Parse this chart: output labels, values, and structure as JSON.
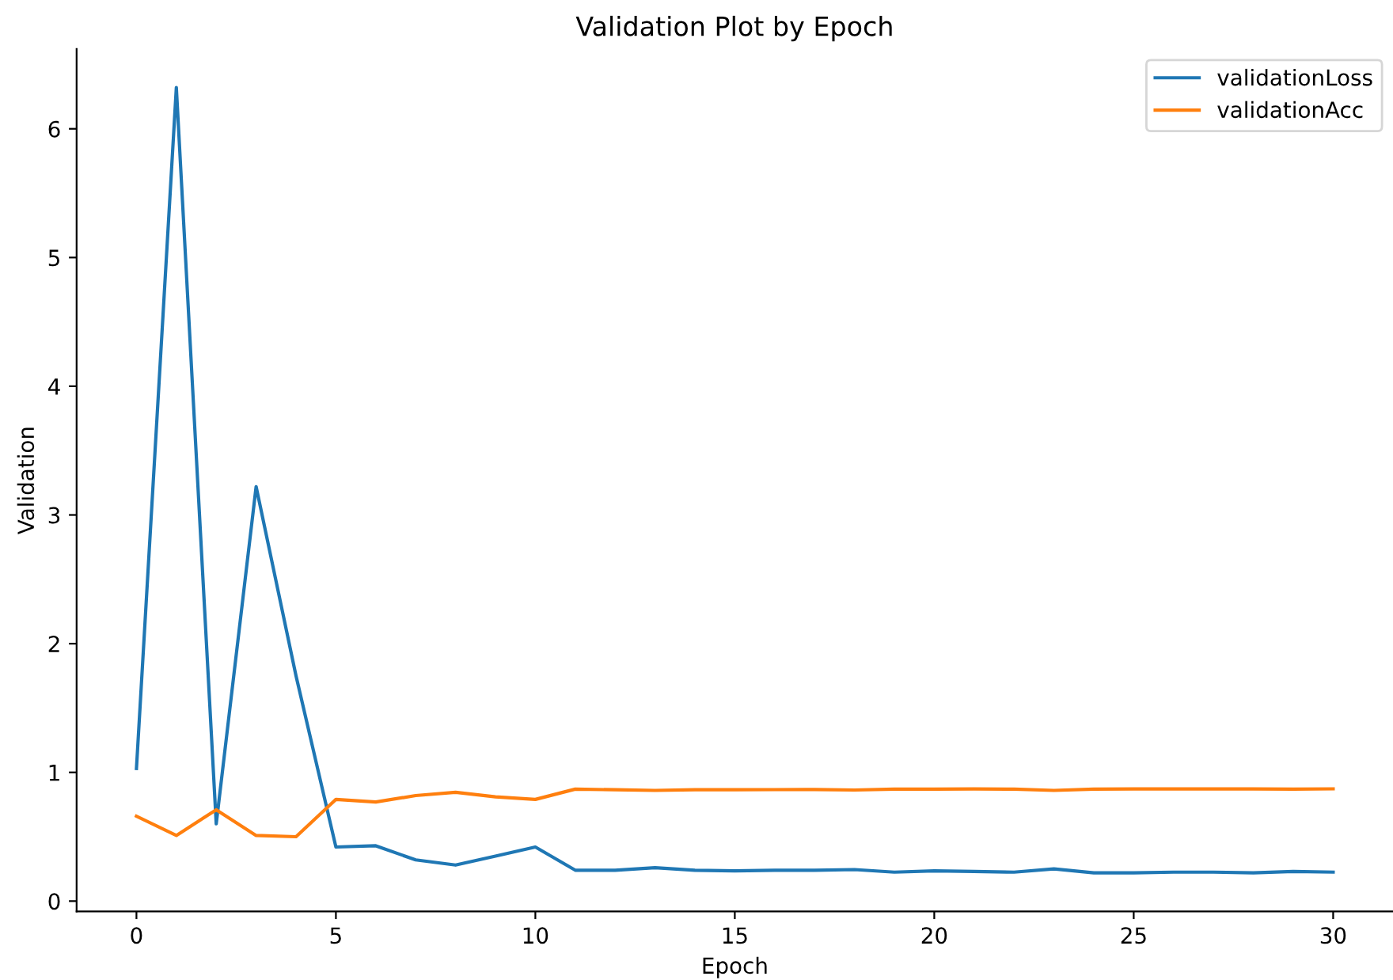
{
  "chart_data": {
    "type": "line",
    "title": "Validation Plot by Epoch",
    "xlabel": "Epoch",
    "ylabel": "Validation",
    "x": [
      0,
      1,
      2,
      3,
      4,
      5,
      6,
      7,
      8,
      9,
      10,
      11,
      12,
      13,
      14,
      15,
      16,
      17,
      18,
      19,
      20,
      21,
      22,
      23,
      24,
      25,
      26,
      27,
      28,
      29,
      30
    ],
    "series": [
      {
        "name": "validationLoss",
        "color": "#1f77b4",
        "values": [
          1.03,
          6.32,
          0.6,
          3.22,
          1.75,
          0.42,
          0.43,
          0.32,
          0.28,
          0.35,
          0.42,
          0.24,
          0.24,
          0.26,
          0.24,
          0.235,
          0.24,
          0.24,
          0.245,
          0.225,
          0.235,
          0.23,
          0.225,
          0.25,
          0.22,
          0.22,
          0.225,
          0.225,
          0.22,
          0.23,
          0.225
        ]
      },
      {
        "name": "validationAcc",
        "color": "#ff7f0e",
        "values": [
          0.66,
          0.51,
          0.71,
          0.51,
          0.5,
          0.79,
          0.77,
          0.82,
          0.845,
          0.81,
          0.79,
          0.87,
          0.865,
          0.86,
          0.865,
          0.865,
          0.866,
          0.867,
          0.863,
          0.87,
          0.87,
          0.872,
          0.87,
          0.86,
          0.87,
          0.872,
          0.872,
          0.872,
          0.872,
          0.87,
          0.872
        ]
      }
    ],
    "xlim": [
      -1.5,
      31.5
    ],
    "ylim": [
      -0.08,
      6.62
    ],
    "xticks": [
      0,
      5,
      10,
      15,
      20,
      25,
      30
    ],
    "yticks": [
      0,
      1,
      2,
      3,
      4,
      5,
      6
    ],
    "grid": false,
    "legend": "top right",
    "line_style": "solid",
    "marker": "none"
  }
}
